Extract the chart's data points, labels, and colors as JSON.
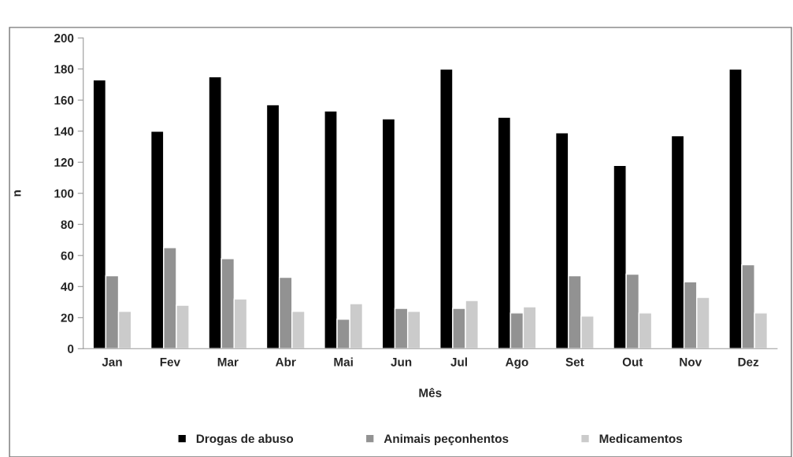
{
  "chart_data": {
    "type": "bar",
    "xlabel": "Mês",
    "ylabel": "n",
    "categories": [
      "Jan",
      "Fev",
      "Mar",
      "Abr",
      "Mai",
      "Jun",
      "Jul",
      "Ago",
      "Set",
      "Out",
      "Nov",
      "Dez"
    ],
    "series": [
      {
        "name": "Drogas de abuso",
        "color": "#000000",
        "values": [
          173,
          140,
          175,
          157,
          153,
          148,
          180,
          149,
          139,
          118,
          137,
          180
        ]
      },
      {
        "name": "Animais peçonhentos",
        "color": "#929292",
        "values": [
          47,
          65,
          58,
          46,
          19,
          26,
          26,
          23,
          47,
          48,
          43,
          54
        ]
      },
      {
        "name": "Medicamentos",
        "color": "#cbcbcb",
        "values": [
          24,
          28,
          32,
          24,
          29,
          24,
          31,
          27,
          21,
          23,
          33,
          23
        ]
      }
    ],
    "ylim": [
      0,
      200
    ],
    "yticks": [
      0,
      20,
      40,
      60,
      80,
      100,
      120,
      140,
      160,
      180,
      200
    ],
    "grid": false,
    "legend": "bottom"
  }
}
